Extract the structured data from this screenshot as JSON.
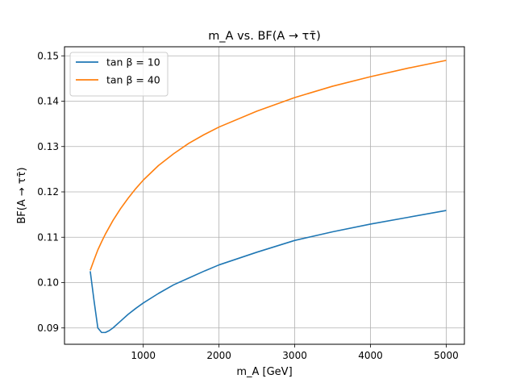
{
  "chart_data": {
    "type": "line",
    "title": "m_A vs. BF(A → ττ̄)",
    "xlabel": "m_A [GeV]",
    "ylabel": "BF(A → ττ̄)",
    "xlim": [
      -40,
      5240
    ],
    "ylim": [
      0.0864,
      0.152
    ],
    "xticks": [
      1000,
      2000,
      3000,
      4000,
      5000
    ],
    "yticks": [
      0.09,
      0.1,
      0.11,
      0.12,
      0.13,
      0.14,
      0.15
    ],
    "ytick_labels": [
      "0.09",
      "0.10",
      "0.11",
      "0.12",
      "0.13",
      "0.14",
      "0.15"
    ],
    "grid": true,
    "legend_position": "top-left",
    "series": [
      {
        "name": "tan β = 10",
        "color": "#1f77b4",
        "x": [
          300,
          350,
          400,
          450,
          500,
          550,
          600,
          700,
          800,
          900,
          1000,
          1200,
          1400,
          1600,
          1800,
          2000,
          2500,
          3000,
          3500,
          4000,
          4500,
          5000
        ],
        "y": [
          0.1025,
          0.096,
          0.09,
          0.089,
          0.089,
          0.0894,
          0.09,
          0.0915,
          0.093,
          0.0943,
          0.0955,
          0.0976,
          0.0995,
          0.101,
          0.1025,
          0.1039,
          0.1067,
          0.1093,
          0.1112,
          0.1129,
          0.1144,
          0.1159
        ]
      },
      {
        "name": "tan β = 40",
        "color": "#ff7f0e",
        "x": [
          300,
          350,
          400,
          450,
          500,
          600,
          700,
          800,
          900,
          1000,
          1200,
          1400,
          1600,
          1800,
          2000,
          2500,
          3000,
          3500,
          4000,
          4500,
          5000
        ],
        "y": [
          0.1027,
          0.105,
          0.1072,
          0.109,
          0.1107,
          0.1137,
          0.1163,
          0.1186,
          0.1207,
          0.1226,
          0.1258,
          0.1284,
          0.1307,
          0.1326,
          0.1343,
          0.1378,
          0.1408,
          0.1433,
          0.1454,
          0.1473,
          0.149
        ]
      }
    ]
  }
}
